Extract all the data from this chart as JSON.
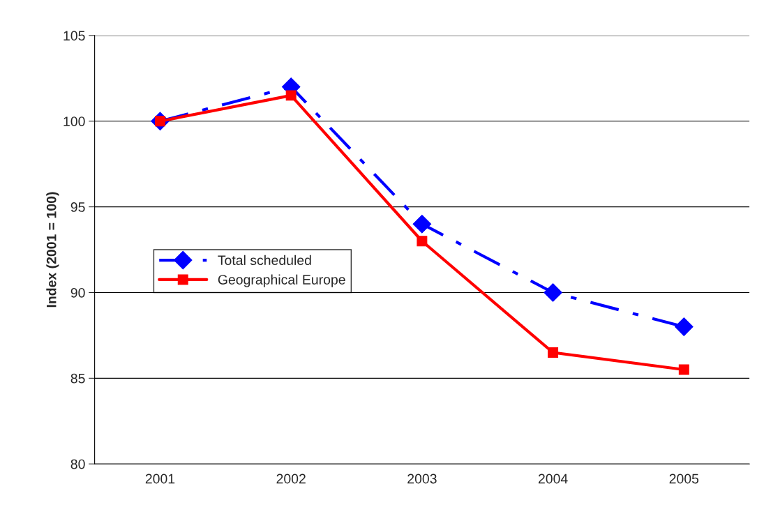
{
  "chart_data": {
    "type": "line",
    "ylabel": "Index (2001 = 100)",
    "categories": [
      "2001",
      "2002",
      "2003",
      "2004",
      "2005"
    ],
    "series": [
      {
        "name": "Total scheduled",
        "color": "#0000ff",
        "values": [
          100,
          102,
          94,
          90,
          88
        ],
        "marker": "diamond",
        "line_style": "dashed"
      },
      {
        "name": "Geographical Europe",
        "color": "#ff0000",
        "values": [
          100,
          101.5,
          93,
          86.5,
          85.5
        ],
        "marker": "square",
        "line_style": "solid"
      }
    ],
    "ylim": [
      80,
      105
    ],
    "yticks": [
      80,
      85,
      90,
      95,
      100,
      105
    ],
    "grid": "y",
    "legend": "center left"
  }
}
